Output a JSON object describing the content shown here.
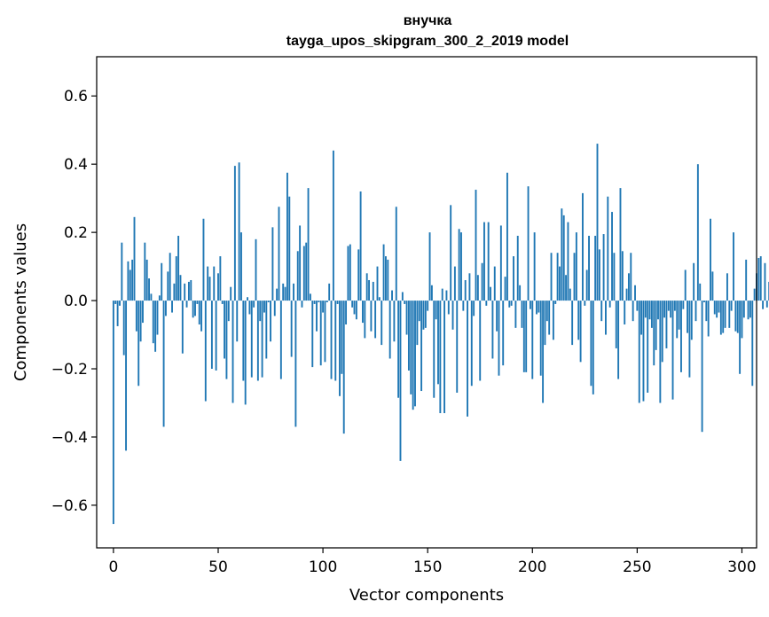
{
  "colors": {
    "bar": "#1f77b4",
    "axis": "#000000",
    "background": "#ffffff"
  },
  "chart_data": {
    "type": "bar",
    "title_line1": "внучка",
    "title_line2": "tayga_upos_skipgram_300_2_2019 model",
    "xlabel": "Vector components",
    "ylabel": "Components values",
    "xlim": [
      -8,
      307
    ],
    "ylim": [
      -0.725,
      0.715
    ],
    "xticks": [
      0,
      50,
      100,
      150,
      200,
      250,
      300
    ],
    "xtick_labels": [
      "0",
      "50",
      "100",
      "150",
      "200",
      "250",
      "300"
    ],
    "yticks": [
      -0.6,
      -0.4,
      -0.2,
      0.0,
      0.2,
      0.4,
      0.6
    ],
    "ytick_labels": [
      "−0.6",
      "−0.4",
      "−0.2",
      "0.0",
      "0.2",
      "0.4",
      "0.6"
    ],
    "values": [
      -0.655,
      -0.01,
      -0.075,
      -0.015,
      0.17,
      -0.16,
      -0.44,
      0.115,
      0.09,
      0.12,
      0.245,
      -0.09,
      -0.25,
      -0.12,
      -0.065,
      0.17,
      0.12,
      0.065,
      0.02,
      -0.125,
      -0.15,
      -0.1,
      0.015,
      0.11,
      -0.37,
      -0.045,
      0.085,
      0.14,
      -0.035,
      0.05,
      0.13,
      0.19,
      0.075,
      -0.155,
      0.05,
      -0.02,
      0.055,
      0.06,
      -0.05,
      -0.045,
      -0.01,
      -0.07,
      -0.09,
      0.24,
      -0.295,
      0.1,
      0.07,
      -0.2,
      0.1,
      -0.205,
      0.08,
      0.13,
      -0.01,
      -0.17,
      -0.23,
      -0.06,
      0.04,
      -0.3,
      0.395,
      -0.12,
      0.405,
      0.2,
      -0.235,
      -0.305,
      0.01,
      -0.04,
      -0.225,
      -0.02,
      0.18,
      -0.235,
      -0.06,
      -0.225,
      -0.035,
      -0.17,
      -0.005,
      -0.12,
      0.215,
      -0.045,
      0.035,
      0.275,
      -0.23,
      0.05,
      0.04,
      0.375,
      0.305,
      -0.165,
      0.05,
      -0.37,
      0.145,
      0.22,
      -0.02,
      0.16,
      0.17,
      0.33,
      0.02,
      -0.195,
      -0.01,
      -0.09,
      -0.005,
      -0.19,
      -0.035,
      -0.18,
      -0.005,
      0.05,
      -0.23,
      0.44,
      -0.235,
      -0.01,
      -0.28,
      -0.215,
      -0.39,
      -0.07,
      0.16,
      0.165,
      -0.02,
      -0.04,
      -0.055,
      0.15,
      0.32,
      -0.065,
      -0.11,
      0.08,
      0.06,
      -0.09,
      0.055,
      -0.11,
      0.1,
      0.01,
      -0.13,
      0.165,
      0.13,
      0.12,
      -0.17,
      0.03,
      -0.12,
      0.275,
      -0.285,
      -0.47,
      0.025,
      -0.01,
      -0.1,
      -0.205,
      -0.275,
      -0.32,
      -0.31,
      -0.13,
      -0.06,
      -0.265,
      -0.085,
      -0.08,
      -0.03,
      0.2,
      0.045,
      -0.285,
      -0.055,
      -0.245,
      -0.33,
      0.035,
      -0.33,
      0.03,
      -0.04,
      0.28,
      -0.085,
      0.1,
      -0.27,
      0.21,
      0.2,
      -0.03,
      0.06,
      -0.34,
      0.08,
      -0.25,
      -0.045,
      0.325,
      0.075,
      -0.235,
      0.11,
      0.23,
      -0.015,
      0.23,
      0.04,
      -0.17,
      0.1,
      -0.09,
      -0.22,
      0.22,
      -0.19,
      0.07,
      0.375,
      -0.02,
      -0.015,
      0.13,
      -0.08,
      0.19,
      0.045,
      -0.08,
      -0.21,
      -0.21,
      0.335,
      -0.025,
      -0.23,
      0.2,
      -0.04,
      -0.035,
      -0.22,
      -0.3,
      -0.13,
      -0.06,
      -0.1,
      0.14,
      -0.115,
      -0.01,
      0.14,
      0.1,
      0.27,
      0.25,
      0.075,
      0.23,
      0.035,
      -0.13,
      0.14,
      0.2,
      -0.115,
      -0.18,
      0.315,
      -0.015,
      0.09,
      0.19,
      -0.25,
      -0.275,
      0.19,
      0.46,
      0.15,
      -0.06,
      0.195,
      -0.1,
      0.305,
      -0.02,
      0.26,
      0.14,
      -0.14,
      -0.23,
      0.33,
      0.145,
      -0.07,
      0.035,
      0.08,
      0.14,
      -0.06,
      0.045,
      -0.03,
      -0.3,
      -0.1,
      -0.295,
      -0.05,
      -0.27,
      -0.055,
      -0.08,
      -0.19,
      -0.145,
      -0.055,
      -0.3,
      -0.18,
      -0.05,
      -0.14,
      -0.03,
      -0.05,
      -0.29,
      -0.03,
      -0.11,
      -0.085,
      -0.21,
      -0.025,
      0.09,
      -0.095,
      -0.225,
      -0.115,
      0.11,
      -0.06,
      0.4,
      0.05,
      -0.385,
      -0.005,
      -0.06,
      -0.105,
      0.24,
      0.085,
      -0.04,
      -0.05,
      -0.035,
      -0.1,
      -0.095,
      -0.08,
      0.08,
      -0.08,
      -0.03,
      0.2,
      -0.09,
      -0.095,
      -0.215,
      -0.11,
      -0.05,
      0.12,
      -0.055,
      -0.05,
      -0.25,
      0.035,
      0.08,
      0.125,
      0.13,
      -0.025,
      0.11,
      -0.02,
      0.055,
      0.185,
      -0.235,
      0.07,
      0.245,
      -0.085,
      0.02,
      0.06,
      0.185,
      0.02,
      0.07,
      0.12,
      0.2,
      0.045,
      -0.02,
      0.205,
      0.195,
      0.15,
      0.235,
      0.095,
      0.12,
      0.145,
      0.18,
      -0.15,
      -0.07,
      0.17,
      0.25,
      0.3,
      0.065,
      0.04,
      0.205,
      -0.01,
      0.08,
      -0.03,
      0.22,
      0.06,
      -0.025,
      0.23,
      0.19,
      0.2,
      0.05,
      0.05,
      0.09,
      0.26,
      0.35,
      0.255,
      0.15,
      0.26,
      -0.04,
      0.11,
      0.12,
      0.65,
      0.195,
      -0.17,
      -0.245
    ]
  }
}
